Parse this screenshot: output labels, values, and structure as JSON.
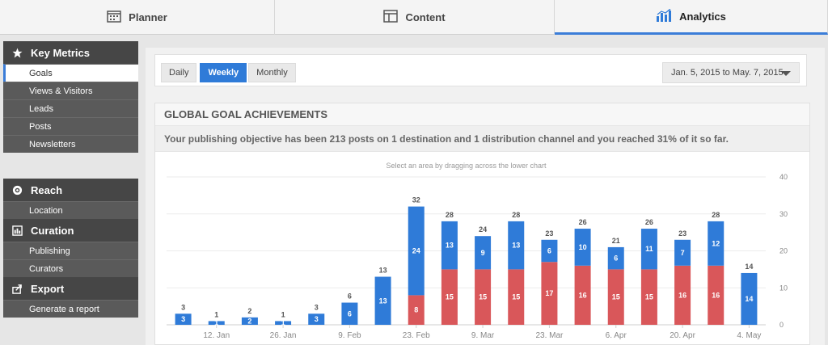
{
  "tabs": [
    {
      "label": "Planner",
      "icon": "calendar-icon"
    },
    {
      "label": "Content",
      "icon": "layout-icon"
    },
    {
      "label": "Analytics",
      "icon": "bar-chart-icon"
    }
  ],
  "sidebar": {
    "key_metrics": {
      "title": "Key Metrics",
      "items": [
        "Goals",
        "Views & Visitors",
        "Leads",
        "Posts",
        "Newsletters"
      ]
    },
    "reach": {
      "title": "Reach",
      "items": [
        "Location"
      ]
    },
    "curation": {
      "title": "Curation",
      "items": [
        "Publishing",
        "Curators"
      ]
    },
    "export": {
      "title": "Export",
      "items": [
        "Generate a report"
      ]
    }
  },
  "toolbar": {
    "periods": [
      "Daily",
      "Weekly",
      "Monthly"
    ],
    "active_period": "Weekly",
    "date_range": "Jan. 5, 2015 to May. 7, 2015"
  },
  "card": {
    "title": "GLOBAL GOAL ACHIEVEMENTS",
    "subtitle": "Your publishing objective has been 213 posts on 1 destination and 1 distribution channel and you reached 31% of it so far."
  },
  "colors": {
    "blue": "#2f7bd8",
    "red": "#d9575a",
    "accent": "#3b7dd8"
  },
  "chart_data": {
    "type": "bar",
    "stacked": true,
    "hint": "Select an area by dragging across the lower chart",
    "x_tick_labels": [
      "12. Jan",
      "26. Jan",
      "9. Feb",
      "23. Feb",
      "9. Mar",
      "23. Mar",
      "6. Apr",
      "20. Apr",
      "4. May"
    ],
    "y_ticks": [
      0,
      10,
      20,
      30,
      40
    ],
    "ylim": [
      0,
      40
    ],
    "grid": true,
    "series": [
      {
        "color": "#d9575a",
        "values": [
          0,
          0,
          0,
          0,
          0,
          0,
          0,
          8,
          15,
          15,
          15,
          17,
          16,
          15,
          15,
          16,
          16,
          0
        ]
      },
      {
        "color": "#2f7bd8",
        "values": [
          3,
          1,
          2,
          1,
          3,
          6,
          13,
          24,
          13,
          9,
          13,
          6,
          10,
          6,
          11,
          7,
          12,
          14
        ]
      }
    ],
    "totals": [
      3,
      1,
      2,
      1,
      3,
      6,
      13,
      32,
      28,
      24,
      28,
      23,
      26,
      21,
      26,
      23,
      28,
      14
    ]
  }
}
